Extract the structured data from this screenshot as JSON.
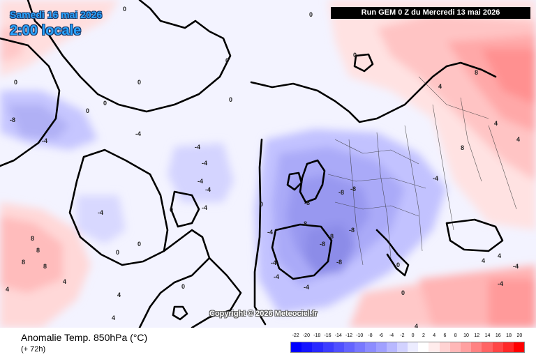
{
  "header": {
    "date": "Samedi 16 mai 2026",
    "local_time": "2:00 locale",
    "run": "Run GEM 0 Z du Mercredi 13 mai 2026"
  },
  "map": {
    "copyright": "Copyright © 2026 Meteociel.fr",
    "anomaly_labels": [
      {
        "text": "0"
      },
      {
        "text": "0"
      },
      {
        "text": "0"
      },
      {
        "text": "0"
      },
      {
        "text": "0"
      },
      {
        "text": "0"
      },
      {
        "text": "0"
      },
      {
        "text": "0"
      },
      {
        "text": "-8"
      },
      {
        "text": "-4"
      },
      {
        "text": "-4"
      },
      {
        "text": "-4"
      },
      {
        "text": "-4"
      },
      {
        "text": "-4"
      },
      {
        "text": "-4"
      },
      {
        "text": "-4"
      },
      {
        "text": "-4"
      },
      {
        "text": "0"
      },
      {
        "text": "8"
      },
      {
        "text": "8"
      },
      {
        "text": "8"
      },
      {
        "text": "8"
      },
      {
        "text": "4"
      },
      {
        "text": "4"
      },
      {
        "text": "0"
      },
      {
        "text": "0"
      },
      {
        "text": "-4"
      },
      {
        "text": "-8"
      },
      {
        "text": "-8"
      },
      {
        "text": "-8"
      },
      {
        "text": "-8"
      },
      {
        "text": "-8"
      },
      {
        "text": "-8"
      },
      {
        "text": "-8"
      },
      {
        "text": "-8"
      },
      {
        "text": "-4"
      },
      {
        "text": "-4"
      },
      {
        "text": "-4"
      },
      {
        "text": "-4"
      },
      {
        "text": "-4"
      },
      {
        "text": "0"
      },
      {
        "text": "4"
      },
      {
        "text": "4"
      },
      {
        "text": "8"
      },
      {
        "text": "8"
      },
      {
        "text": "4"
      },
      {
        "text": "4"
      },
      {
        "text": "4"
      },
      {
        "text": "0"
      },
      {
        "text": "0"
      },
      {
        "text": "-4"
      },
      {
        "text": "0"
      },
      {
        "text": "4"
      },
      {
        "text": "4"
      },
      {
        "text": "4"
      },
      {
        "text": "0"
      }
    ]
  },
  "footer": {
    "variable": "Anomalie Temp. 850hPa (°C)",
    "lead_time": "(+ 72h)"
  },
  "scale": {
    "labels": [
      "-22",
      "-20",
      "-18",
      "-16",
      "-14",
      "-12",
      "-10",
      "-8",
      "-6",
      "-4",
      "-2",
      "0",
      "2",
      "4",
      "6",
      "8",
      "10",
      "12",
      "14",
      "16",
      "18",
      "20"
    ],
    "colors": [
      "#0000ff",
      "#1414ff",
      "#2828ff",
      "#3c3cff",
      "#5050ff",
      "#6464ff",
      "#7878ff",
      "#8c8cff",
      "#a0a0ff",
      "#b8b8ff",
      "#d2d2ff",
      "#ececff",
      "#ffffff",
      "#ffecec",
      "#ffd2d2",
      "#ffb8b8",
      "#ffa0a0",
      "#ff8282",
      "#ff6464",
      "#ff4646",
      "#ff2828",
      "#ff0000"
    ]
  }
}
